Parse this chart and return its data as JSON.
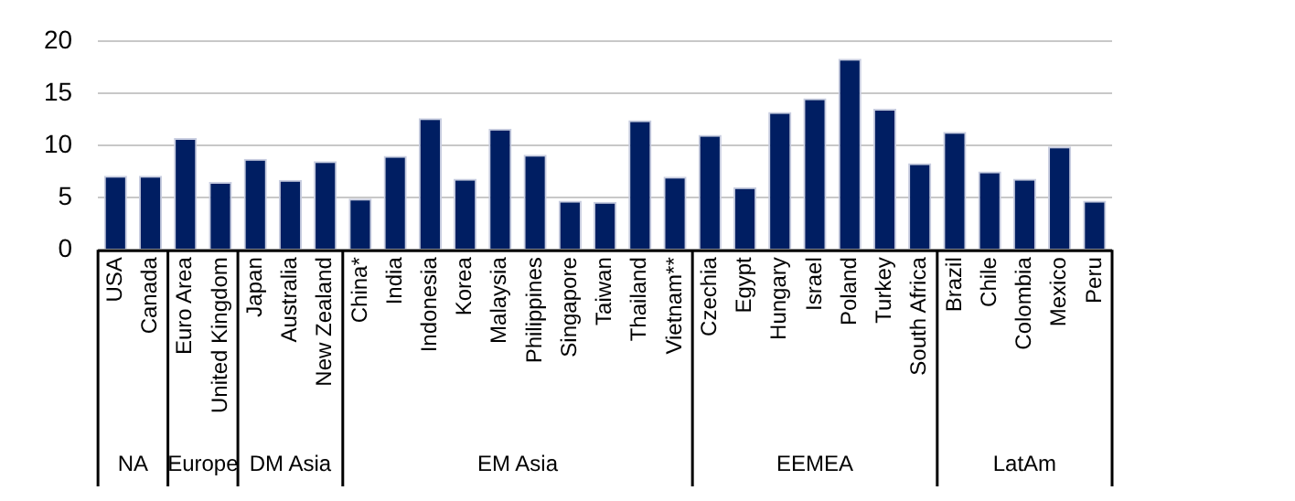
{
  "chart_data": {
    "type": "bar",
    "categories": [
      "USA",
      "Canada",
      "Euro Area",
      "United Kingdom",
      "Japan",
      "Australia",
      "New Zealand",
      "China*",
      "India",
      "Indonesia",
      "Korea",
      "Malaysia",
      "Philippines",
      "Singapore",
      "Taiwan",
      "Thailand",
      "Vietnam**",
      "Czechia",
      "Egypt",
      "Hungary",
      "Israel",
      "Poland",
      "Turkey",
      "South Africa",
      "Brazil",
      "Chile",
      "Colombia",
      "Mexico",
      "Peru"
    ],
    "values": [
      7.1,
      7.1,
      10.7,
      6.5,
      8.7,
      6.7,
      8.5,
      4.9,
      9.0,
      12.6,
      6.8,
      11.6,
      9.1,
      4.7,
      4.6,
      12.4,
      7.0,
      11.0,
      6.0,
      13.2,
      14.5,
      18.3,
      13.5,
      8.3,
      11.3,
      7.5,
      6.8,
      9.9,
      4.7
    ],
    "color": "#001e62",
    "ylim": [
      0,
      20
    ],
    "yticks": [
      0,
      5,
      10,
      15,
      20
    ],
    "grid": "y",
    "legend": false,
    "annotations": [
      "NA",
      "Europe",
      "DM Asia",
      "EM Asia",
      "EEMEA",
      "LatAm"
    ]
  }
}
